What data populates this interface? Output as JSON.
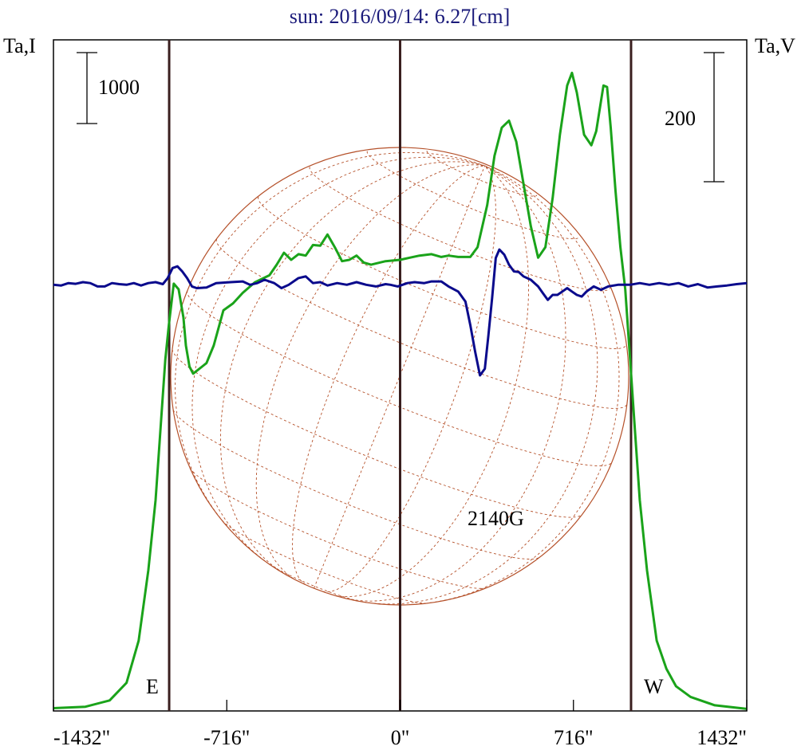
{
  "title": "sun: 2016/09/14: 6.27[cm]",
  "left_axis_label": "Ta,I",
  "right_axis_label": "Ta,V",
  "left_scale_bar_label": "1000",
  "right_scale_bar_label": "200",
  "east_label": "E",
  "west_label": "W",
  "annotation": "2140G",
  "colors": {
    "title": "#1a1a7a",
    "intensity": "#1aa31a",
    "polarization": "#0a0a8c",
    "disk": "#b5512a",
    "limb_lines": "#3a1f1f",
    "frame": "#000000"
  },
  "chart_data": {
    "type": "line",
    "title": "sun: 2016/09/14: 6.27[cm]",
    "x_unit": "arcsec",
    "xlim": [
      -1432,
      1432
    ],
    "x_ticks": [
      -1432,
      -716,
      0,
      716,
      1432
    ],
    "x_tick_labels": [
      "-1432\"",
      "-716\"",
      "0\"",
      "716\"",
      "1432\""
    ],
    "vertical_lines_x": [
      -954,
      0,
      954
    ],
    "left_scale_bar": {
      "value": 1000,
      "label": "1000"
    },
    "right_scale_bar": {
      "value": 200,
      "label": "200"
    },
    "intensity_ylim": [
      0,
      9550
    ],
    "polarization_ylim": [
      -1270,
      730
    ],
    "series": [
      {
        "key": "intensity",
        "axis": "left",
        "color": "#1aa31a",
        "points": [
          [
            -1432,
            40
          ],
          [
            -1300,
            60
          ],
          [
            -1200,
            150
          ],
          [
            -1130,
            400
          ],
          [
            -1080,
            1000
          ],
          [
            -1040,
            2000
          ],
          [
            -1010,
            3000
          ],
          [
            -990,
            4000
          ],
          [
            -970,
            5000
          ],
          [
            -955,
            5500
          ],
          [
            -935,
            6080
          ],
          [
            -915,
            6000
          ],
          [
            -895,
            5600
          ],
          [
            -885,
            5200
          ],
          [
            -870,
            4900
          ],
          [
            -855,
            4800
          ],
          [
            -800,
            4950
          ],
          [
            -770,
            5200
          ],
          [
            -730,
            5700
          ],
          [
            -690,
            5800
          ],
          [
            -650,
            5950
          ],
          [
            -600,
            6100
          ],
          [
            -540,
            6200
          ],
          [
            -510,
            6350
          ],
          [
            -480,
            6520
          ],
          [
            -450,
            6420
          ],
          [
            -420,
            6500
          ],
          [
            -390,
            6480
          ],
          [
            -360,
            6630
          ],
          [
            -330,
            6620
          ],
          [
            -300,
            6780
          ],
          [
            -270,
            6600
          ],
          [
            -240,
            6400
          ],
          [
            -210,
            6420
          ],
          [
            -180,
            6480
          ],
          [
            -150,
            6380
          ],
          [
            -120,
            6350
          ],
          [
            -60,
            6400
          ],
          [
            0,
            6420
          ],
          [
            40,
            6450
          ],
          [
            80,
            6480
          ],
          [
            130,
            6500
          ],
          [
            170,
            6460
          ],
          [
            200,
            6480
          ],
          [
            240,
            6460
          ],
          [
            290,
            6460
          ],
          [
            320,
            6600
          ],
          [
            360,
            7200
          ],
          [
            390,
            7900
          ],
          [
            420,
            8300
          ],
          [
            450,
            8400
          ],
          [
            480,
            8100
          ],
          [
            510,
            7500
          ],
          [
            540,
            6900
          ],
          [
            570,
            6450
          ],
          [
            600,
            6600
          ],
          [
            630,
            7300
          ],
          [
            660,
            8200
          ],
          [
            690,
            8900
          ],
          [
            710,
            9080
          ],
          [
            730,
            8800
          ],
          [
            760,
            8200
          ],
          [
            790,
            8050
          ],
          [
            810,
            8250
          ],
          [
            840,
            8900
          ],
          [
            855,
            8880
          ],
          [
            870,
            8300
          ],
          [
            890,
            7400
          ],
          [
            910,
            6600
          ],
          [
            930,
            6000
          ],
          [
            950,
            5000
          ],
          [
            970,
            4000
          ],
          [
            990,
            3000
          ],
          [
            1020,
            2000
          ],
          [
            1060,
            1000
          ],
          [
            1100,
            600
          ],
          [
            1140,
            350
          ],
          [
            1200,
            200
          ],
          [
            1300,
            80
          ],
          [
            1432,
            30
          ]
        ]
      },
      {
        "key": "polarization",
        "axis": "right",
        "color": "#0a0a8c",
        "points": [
          [
            -1432,
            0
          ],
          [
            -1400,
            -2
          ],
          [
            -1370,
            5
          ],
          [
            -1340,
            3
          ],
          [
            -1310,
            8
          ],
          [
            -1280,
            5
          ],
          [
            -1250,
            -5
          ],
          [
            -1220,
            -5
          ],
          [
            -1190,
            5
          ],
          [
            -1160,
            2
          ],
          [
            -1130,
            0
          ],
          [
            -1100,
            5
          ],
          [
            -1070,
            -2
          ],
          [
            -1040,
            5
          ],
          [
            -1010,
            8
          ],
          [
            -980,
            2
          ],
          [
            -960,
            20
          ],
          [
            -940,
            50
          ],
          [
            -920,
            55
          ],
          [
            -900,
            40
          ],
          [
            -880,
            20
          ],
          [
            -860,
            -5
          ],
          [
            -840,
            -10
          ],
          [
            -800,
            -8
          ],
          [
            -760,
            5
          ],
          [
            -700,
            8
          ],
          [
            -650,
            10
          ],
          [
            -620,
            0
          ],
          [
            -590,
            5
          ],
          [
            -560,
            15
          ],
          [
            -520,
            5
          ],
          [
            -490,
            -10
          ],
          [
            -460,
            0
          ],
          [
            -420,
            20
          ],
          [
            -390,
            25
          ],
          [
            -360,
            5
          ],
          [
            -330,
            8
          ],
          [
            -300,
            -2
          ],
          [
            -260,
            5
          ],
          [
            -220,
            0
          ],
          [
            -180,
            8
          ],
          [
            -140,
            0
          ],
          [
            -100,
            -5
          ],
          [
            -60,
            2
          ],
          [
            -40,
            0
          ],
          [
            -10,
            -5
          ],
          [
            30,
            5
          ],
          [
            60,
            8
          ],
          [
            100,
            5
          ],
          [
            130,
            10
          ],
          [
            170,
            10
          ],
          [
            200,
            -5
          ],
          [
            240,
            -20
          ],
          [
            270,
            -50
          ],
          [
            290,
            -120
          ],
          [
            310,
            -200
          ],
          [
            330,
            -270
          ],
          [
            350,
            -250
          ],
          [
            365,
            -150
          ],
          [
            380,
            -40
          ],
          [
            395,
            80
          ],
          [
            410,
            105
          ],
          [
            430,
            90
          ],
          [
            450,
            60
          ],
          [
            470,
            40
          ],
          [
            490,
            38
          ],
          [
            510,
            25
          ],
          [
            540,
            15
          ],
          [
            570,
            -5
          ],
          [
            590,
            -25
          ],
          [
            610,
            -45
          ],
          [
            630,
            -30
          ],
          [
            650,
            -30
          ],
          [
            670,
            -20
          ],
          [
            690,
            -10
          ],
          [
            710,
            -20
          ],
          [
            730,
            -30
          ],
          [
            750,
            -35
          ],
          [
            770,
            -20
          ],
          [
            800,
            -5
          ],
          [
            830,
            -15
          ],
          [
            860,
            -5
          ],
          [
            900,
            0
          ],
          [
            950,
            0
          ],
          [
            990,
            5
          ],
          [
            1030,
            0
          ],
          [
            1070,
            5
          ],
          [
            1110,
            0
          ],
          [
            1150,
            5
          ],
          [
            1190,
            -5
          ],
          [
            1230,
            2
          ],
          [
            1270,
            -8
          ],
          [
            1310,
            -5
          ],
          [
            1350,
            -2
          ],
          [
            1390,
            2
          ],
          [
            1432,
            5
          ]
        ]
      }
    ]
  }
}
